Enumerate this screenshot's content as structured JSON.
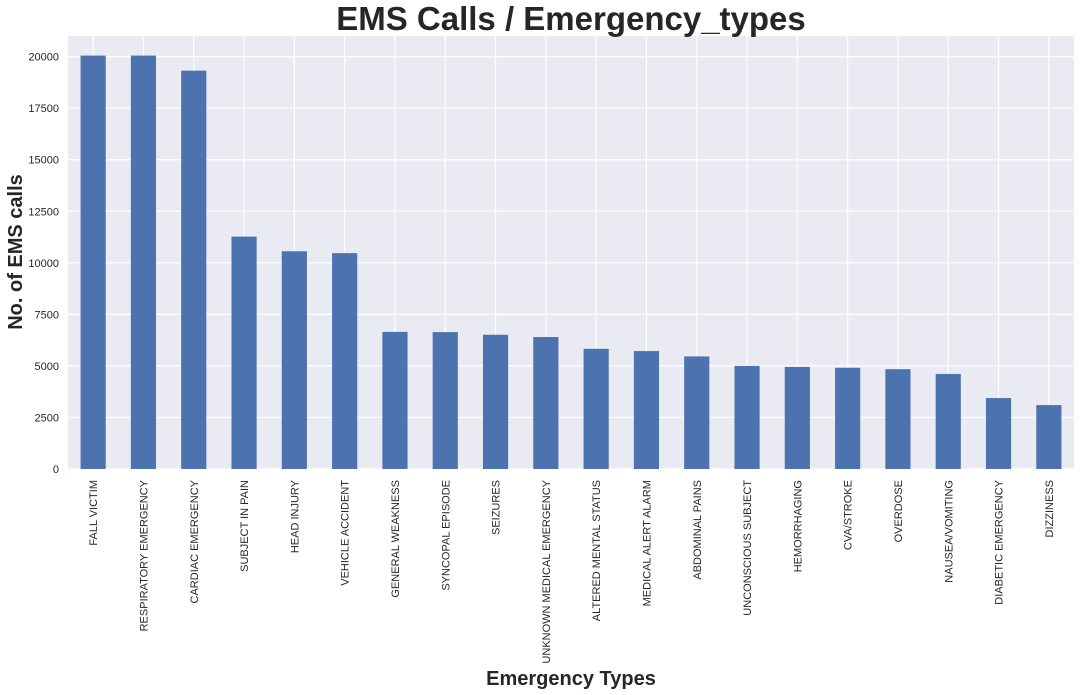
{
  "chart_data": {
    "type": "bar",
    "title": "EMS Calls / Emergency_types",
    "xlabel": "Emergency Types",
    "ylabel": "No. of EMS calls",
    "categories": [
      "FALL VICTIM",
      "RESPIRATORY EMERGENCY",
      "CARDIAC EMERGENCY",
      "SUBJECT IN PAIN",
      "HEAD INJURY",
      "VEHICLE ACCIDENT",
      "GENERAL WEAKNESS",
      "SYNCOPAL EPISODE",
      "SEIZURES",
      "UNKNOWN MEDICAL EMERGENCY",
      "ALTERED MENTAL STATUS",
      "MEDICAL ALERT ALARM",
      "ABDOMINAL PAINS",
      "UNCONSCIOUS SUBJECT",
      "HEMORRHAGING",
      "CVA/STROKE",
      "OVERDOSE",
      "NAUSEA/VOMITING",
      "DIABETIC EMERGENCY",
      "DIZZINESS"
    ],
    "values": [
      20050,
      20050,
      19320,
      11270,
      10560,
      10470,
      6650,
      6640,
      6510,
      6400,
      5830,
      5720,
      5460,
      5000,
      4950,
      4910,
      4840,
      4610,
      3440,
      3100
    ],
    "ylim": [
      0,
      21000
    ],
    "yticks": [
      0,
      2500,
      5000,
      7500,
      10000,
      12500,
      15000,
      17500,
      20000
    ],
    "grid": true,
    "legend": "none",
    "bar_color": "#4c72b0",
    "background_color": "#eaeaf2",
    "grid_color": "#ffffff"
  }
}
